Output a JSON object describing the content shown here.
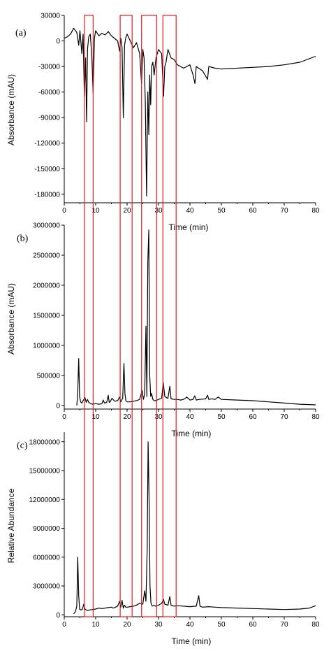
{
  "chart_data": [
    {
      "type": "line",
      "panel_label": "(a)",
      "xlabel": "Time (min)",
      "ylabel": "Absorbance (mAU)",
      "xlim": [
        0,
        80
      ],
      "ylim": [
        -190000,
        30000
      ],
      "xticks": [
        0,
        10,
        20,
        30,
        40,
        50,
        60,
        70,
        80
      ],
      "yticks": [
        30000,
        0,
        -30000,
        -60000,
        -90000,
        -120000,
        -150000,
        -180000
      ],
      "ytick_labels": [
        "30000",
        "0",
        "-30000",
        "-60000",
        "-90000",
        "-120000",
        "-150000",
        "-180000"
      ],
      "line_color": "#000000",
      "series": [
        {
          "x": [
            0,
            1,
            2,
            3,
            4,
            4.6,
            5,
            5.6,
            6,
            6.4,
            6.8,
            7.1,
            7.4,
            7.8,
            8.3,
            8.8,
            9.2,
            9.6,
            10,
            11,
            12,
            13,
            14,
            15,
            16,
            17,
            17.6,
            18,
            18.4,
            18.8,
            19.2,
            19.6,
            20,
            21,
            22,
            23,
            24,
            24.6,
            25,
            25.4,
            25.8,
            26.2,
            26.6,
            26.9,
            27.2,
            27.5,
            27.8,
            28.2,
            28.6,
            29.2,
            30,
            31,
            31.6,
            32,
            32.4,
            33,
            34,
            35,
            36,
            38,
            40,
            41,
            41.6,
            42,
            44,
            45.6,
            46,
            48,
            50,
            55,
            60,
            65,
            70,
            75,
            80
          ],
          "y": [
            3000,
            5000,
            8000,
            15000,
            10000,
            -5000,
            12000,
            -15000,
            8000,
            -65000,
            -20000,
            -95000,
            -10000,
            5000,
            8000,
            -20000,
            -62000,
            3000,
            12000,
            6000,
            9000,
            7000,
            11000,
            6000,
            3000,
            0,
            -12000,
            3000,
            -8000,
            -90000,
            -5000,
            4000,
            8000,
            0,
            -8000,
            -2000,
            -15000,
            -50000,
            -10000,
            -20000,
            -72000,
            -182000,
            -60000,
            -110000,
            -40000,
            -75000,
            -30000,
            -25000,
            -40000,
            -20000,
            -10000,
            -15000,
            -65000,
            -30000,
            -25000,
            -10000,
            -20000,
            -22000,
            -28000,
            -32000,
            -28000,
            -40000,
            -50000,
            -30000,
            -35000,
            -45000,
            -30000,
            -32000,
            -33000,
            -32000,
            -31000,
            -30000,
            -28000,
            -25000,
            -18000
          ]
        }
      ]
    },
    {
      "type": "line",
      "panel_label": "(b)",
      "xlabel": "Time (min)",
      "ylabel": "Absorbance (mAU)",
      "xlim": [
        0,
        80
      ],
      "ylim": [
        -60000,
        3000000
      ],
      "xticks": [
        0,
        10,
        20,
        30,
        40,
        50,
        60,
        70,
        80
      ],
      "yticks": [
        0,
        500000,
        1000000,
        1500000,
        2000000,
        2500000,
        3000000
      ],
      "ytick_labels": [
        "0",
        "500000",
        "1000000",
        "1500000",
        "2000000",
        "2500000",
        "3000000"
      ],
      "line_color": "#000000",
      "series": [
        {
          "x": [
            4,
            4.3,
            4.6,
            4.9,
            5.2,
            5.6,
            6,
            6.6,
            7,
            7.4,
            7.8,
            8.4,
            9,
            10,
            11,
            12,
            12.4,
            12.8,
            13.5,
            14,
            14.3,
            14.6,
            15.2,
            16,
            17,
            17.6,
            18,
            18.6,
            19,
            19.3,
            19.6,
            20,
            21,
            22,
            23,
            24,
            24.8,
            25.2,
            25.6,
            26,
            26.3,
            26.6,
            26.9,
            27.2,
            27.5,
            27.8,
            28.2,
            28.6,
            29.2,
            30,
            31,
            31.5,
            32,
            32.5,
            33,
            33.6,
            34,
            35,
            36,
            37,
            38,
            39,
            40,
            41,
            41.5,
            42,
            43,
            45,
            45.6,
            46,
            47,
            48,
            49,
            50,
            55,
            60,
            65,
            70,
            75,
            80
          ],
          "y": [
            0,
            200000,
            780000,
            150000,
            60000,
            40000,
            80000,
            130000,
            50000,
            100000,
            50000,
            30000,
            20000,
            30000,
            20000,
            30000,
            90000,
            40000,
            50000,
            170000,
            50000,
            60000,
            120000,
            70000,
            80000,
            140000,
            60000,
            120000,
            700000,
            200000,
            80000,
            60000,
            60000,
            70000,
            80000,
            100000,
            250000,
            100000,
            200000,
            1320000,
            150000,
            2400000,
            2920000,
            500000,
            150000,
            200000,
            100000,
            80000,
            80000,
            100000,
            120000,
            380000,
            150000,
            130000,
            120000,
            320000,
            110000,
            100000,
            100000,
            90000,
            100000,
            140000,
            90000,
            100000,
            160000,
            90000,
            100000,
            110000,
            170000,
            100000,
            110000,
            100000,
            140000,
            100000,
            90000,
            80000,
            60000,
            40000,
            20000,
            10000
          ]
        }
      ]
    },
    {
      "type": "line",
      "panel_label": "(c)",
      "xlabel": "Time (min)",
      "ylabel": "Relative Abundance",
      "xlim": [
        0,
        80
      ],
      "ylim": [
        -200000,
        19000000
      ],
      "xticks": [
        0,
        10,
        20,
        30,
        40,
        50,
        60,
        70,
        80
      ],
      "yticks": [
        0,
        3000000,
        6000000,
        9000000,
        12000000,
        15000000,
        18000000
      ],
      "ytick_labels": [
        "0",
        "3000000",
        "6000000",
        "9000000",
        "12000000",
        "15000000",
        "18000000"
      ],
      "line_color": "#000000",
      "series": [
        {
          "x": [
            3,
            3.5,
            4,
            4.3,
            4.6,
            4.9,
            5.3,
            5.8,
            6.2,
            6.6,
            7,
            7.5,
            8,
            9,
            10,
            11,
            12,
            13,
            14,
            15,
            15.5,
            16,
            17,
            17.6,
            18,
            18.4,
            18.8,
            19.2,
            19.6,
            20,
            21,
            22,
            23,
            24,
            25,
            25.6,
            26,
            26.4,
            26.7,
            27,
            27.3,
            27.6,
            28,
            28.5,
            29,
            30,
            31,
            31.6,
            32,
            33,
            33.6,
            34,
            35,
            36,
            38,
            40,
            42,
            42.8,
            43.2,
            44,
            46,
            48,
            50,
            55,
            60,
            65,
            70,
            75,
            78,
            80
          ],
          "y": [
            100000,
            300000,
            900000,
            6000000,
            2000000,
            600000,
            500000,
            600000,
            1100000,
            600000,
            500000,
            450000,
            500000,
            550000,
            600000,
            700000,
            650000,
            700000,
            750000,
            800000,
            700000,
            750000,
            900000,
            1400000,
            800000,
            1500000,
            700000,
            1000000,
            800000,
            800000,
            850000,
            900000,
            1000000,
            1200000,
            1100000,
            2500000,
            1400000,
            7000000,
            18000000,
            12000000,
            3000000,
            1200000,
            900000,
            1000000,
            900000,
            1000000,
            1200000,
            1600000,
            1100000,
            1000000,
            1900000,
            1000000,
            900000,
            950000,
            900000,
            850000,
            900000,
            2000000,
            900000,
            800000,
            850000,
            800000,
            750000,
            700000,
            650000,
            600000,
            550000,
            600000,
            700000,
            950000
          ]
        }
      ]
    }
  ],
  "highlight_boxes": {
    "color": "#e8191f",
    "x_ranges": [
      [
        6.4,
        9.2
      ],
      [
        17.8,
        21.6
      ],
      [
        24.6,
        29.4
      ],
      [
        31.4,
        35.6
      ]
    ]
  }
}
